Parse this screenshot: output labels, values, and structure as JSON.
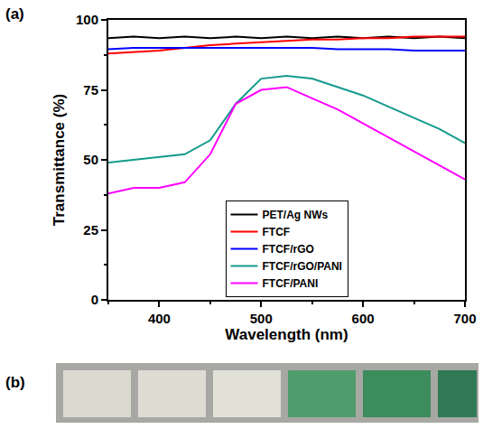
{
  "chart_data": {
    "type": "line",
    "xlabel": "Wavelength (nm)",
    "ylabel": "Transmittance (%)",
    "x": [
      350,
      375,
      400,
      425,
      450,
      475,
      500,
      525,
      550,
      575,
      600,
      625,
      650,
      675,
      700
    ],
    "series": [
      {
        "name": "PET/Ag NWs",
        "color": "#000000",
        "values": [
          93.5,
          94,
          93.5,
          94,
          93.5,
          94,
          93.5,
          94,
          93.5,
          94,
          93.5,
          94,
          93.5,
          94,
          93.5
        ]
      },
      {
        "name": "FTCF",
        "color": "#ff0000",
        "values": [
          88,
          88.5,
          89,
          90,
          91,
          91.5,
          92,
          92.5,
          93,
          93,
          93.5,
          93.5,
          94,
          94,
          94
        ]
      },
      {
        "name": "FTCF/rGO",
        "color": "#0000ff",
        "values": [
          89.5,
          90,
          90,
          90,
          90,
          90,
          90,
          90,
          90,
          89.5,
          89.5,
          89.5,
          89,
          89,
          89
        ]
      },
      {
        "name": "FTCF/rGO/PANI",
        "color": "#139a8c",
        "values": [
          49,
          50,
          51,
          52,
          57,
          70,
          79,
          80,
          79,
          76,
          73,
          69,
          65,
          61,
          56
        ]
      },
      {
        "name": "FTCF/PANI",
        "color": "#ff00ff",
        "values": [
          38,
          40,
          40,
          42,
          52,
          70,
          75,
          76,
          72,
          68,
          63,
          58,
          53,
          48,
          43
        ]
      }
    ],
    "xlim": [
      350,
      700
    ],
    "xticks": [
      400,
      500,
      600,
      700
    ],
    "ylim": [
      0,
      100
    ],
    "yticks": [
      0,
      25,
      50,
      75,
      100
    ],
    "grid": false,
    "legend": "lower center",
    "annotations": [
      "(a)",
      "(b)"
    ]
  }
}
